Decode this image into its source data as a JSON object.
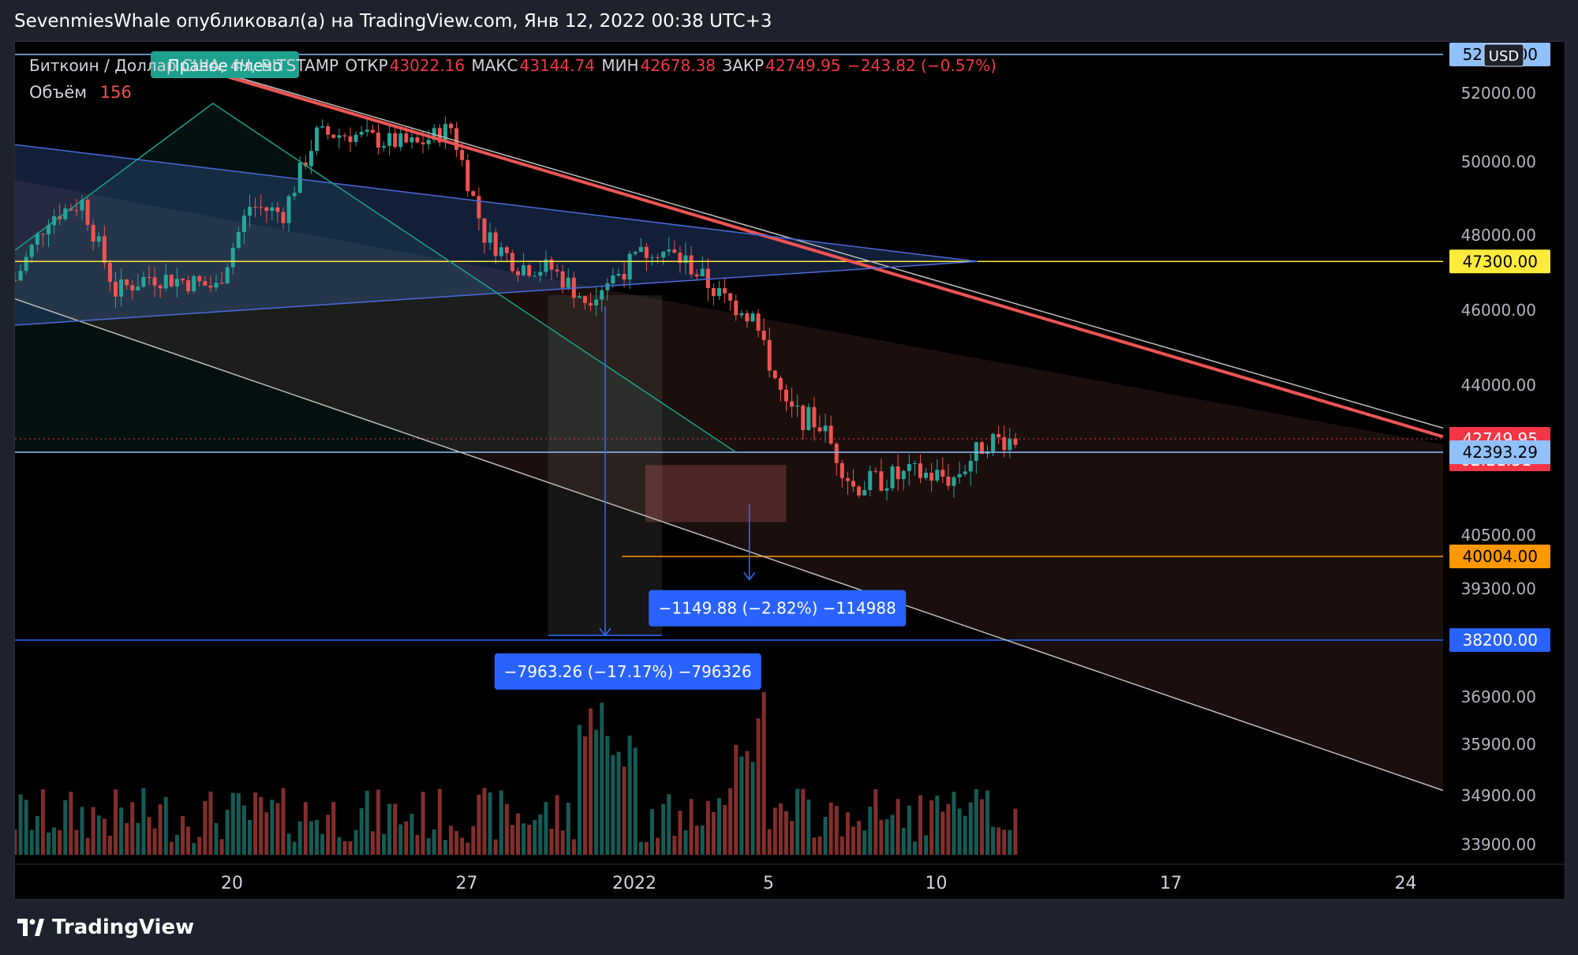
{
  "header": {
    "publisher": "SevenmiesWhale опубликовал(а) на TradingView.com, Янв 12, 2022 00:38 UTC+3"
  },
  "footer": {
    "brand": "TradingView"
  },
  "legend": {
    "symbol": "Биткоин / Доллар США, 4Ч, BITSTAMP",
    "open_label": "ОТКР",
    "open": "43022.16",
    "high_label": "МАКС",
    "high": "43144.74",
    "low_label": "МИН",
    "low": "42678.38",
    "close_label": "ЗАКР",
    "close": "42749.95",
    "change": "−243.82 (−0.57%)",
    "volume_label": "Объём",
    "volume": "156"
  },
  "currency": "USD",
  "pattern_label": "Правое плечо",
  "measures": [
    {
      "text": "−1149.88 (−2.82%) −114988"
    },
    {
      "text": "−7963.26 (−17.17%) −796326"
    }
  ],
  "colors": {
    "up": "#26a69a",
    "down": "#ef5350",
    "background": "#000000",
    "yellow_level": "#ffeb3b",
    "orange_level": "#ff9800",
    "blue_level": "#2962ff",
    "resistance": "#f05454",
    "measure_box": "#2962ff"
  },
  "chart_data": {
    "type": "candlestick",
    "timeframe": "4H",
    "x_ticks": [
      "20",
      "27",
      "2022",
      "5",
      "10",
      "17",
      "24"
    ],
    "y_ticks": [
      "52000.00",
      "50000.00",
      "48000.00",
      "46000.00",
      "44000.00",
      "40500.00",
      "39300.00",
      "36900.00",
      "35900.00",
      "34900.00",
      "33900.00"
    ],
    "price_levels": [
      {
        "name": "top-level",
        "value": 52500,
        "label": "52500.00",
        "color": "#90bff9"
      },
      {
        "name": "yellow-level",
        "value": 47300,
        "label": "47300.00",
        "color": "#ffeb3b"
      },
      {
        "name": "current-price",
        "value": 42749.95,
        "label": "42749.95",
        "sub_label": "02:21:51",
        "color": "#f23645"
      },
      {
        "name": "light-blue-level",
        "value": 42393.29,
        "label": "42393.29",
        "color": "#90bff9"
      },
      {
        "name": "orange-level",
        "value": 40004,
        "label": "40004.00",
        "color": "#ff9800"
      },
      {
        "name": "blue-level",
        "value": 38200,
        "label": "38200.00",
        "color": "#2962ff"
      }
    ],
    "price_path": [
      [
        "12-14",
        46800
      ],
      [
        "12-15",
        48500
      ],
      [
        "12-16",
        48900
      ],
      [
        "12-17",
        46500
      ],
      [
        "12-18",
        46900
      ],
      [
        "12-19",
        46800
      ],
      [
        "12-20",
        46600
      ],
      [
        "12-21",
        48800
      ],
      [
        "12-22",
        48600
      ],
      [
        "12-23",
        50800
      ],
      [
        "12-24",
        50800
      ],
      [
        "12-25",
        50600
      ],
      [
        "12-26",
        50500
      ],
      [
        "12-27",
        51000
      ],
      [
        "12-28",
        48000
      ],
      [
        "12-29",
        47200
      ],
      [
        "12-30",
        47100
      ],
      [
        "12-31",
        46300
      ],
      [
        "01-01",
        47700
      ],
      [
        "01-02",
        47300
      ],
      [
        "01-03",
        46400
      ],
      [
        "01-04",
        45800
      ],
      [
        "01-05",
        43400
      ],
      [
        "01-06",
        43100
      ],
      [
        "01-07",
        41600
      ],
      [
        "01-08",
        41800
      ],
      [
        "01-09",
        41900
      ],
      [
        "01-10",
        41800
      ],
      [
        "01-11",
        42700
      ],
      [
        "01-12",
        42750
      ]
    ],
    "series": [
      {
        "name": "Объём"
      }
    ]
  }
}
